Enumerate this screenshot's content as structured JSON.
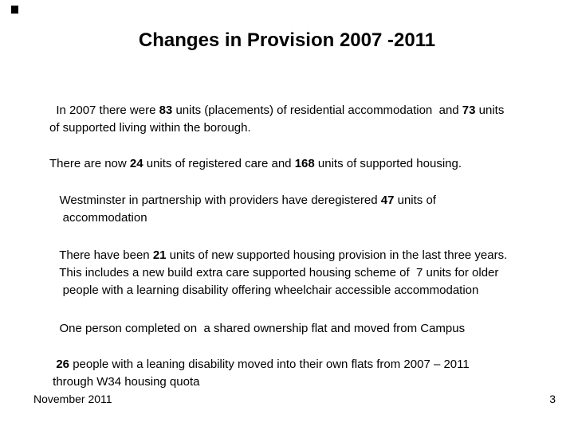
{
  "slide": {
    "title": "Changes in Provision 2007 -2011",
    "artifact_color": "#000000",
    "text_color": "#000000",
    "background_color": "#ffffff",
    "paragraphs": [
      {
        "lines": [
          [
            {
              "text": "  In 2007 there were ",
              "bold": false
            },
            {
              "text": "83",
              "bold": true
            },
            {
              "text": " units (placements) of residential accommodation  and ",
              "bold": false
            },
            {
              "text": "73",
              "bold": true
            },
            {
              "text": " units",
              "bold": false
            }
          ],
          [
            {
              "text": "of supported living within the borough.",
              "bold": false
            }
          ]
        ]
      },
      {
        "lines": [
          [
            {
              "text": "There are now ",
              "bold": false
            },
            {
              "text": "24",
              "bold": true
            },
            {
              "text": " units of registered care and ",
              "bold": false
            },
            {
              "text": "168",
              "bold": true
            },
            {
              "text": " units of supported housing.",
              "bold": false
            }
          ]
        ]
      },
      {
        "lines": [
          [
            {
              "text": "   Westminster in partnership with providers have deregistered ",
              "bold": false
            },
            {
              "text": "47",
              "bold": true
            },
            {
              "text": " units of",
              "bold": false
            }
          ],
          [
            {
              "text": "    accommodation",
              "bold": false
            }
          ]
        ]
      },
      {
        "lines": [
          [
            {
              "text": "   There have been ",
              "bold": false
            },
            {
              "text": "21",
              "bold": true
            },
            {
              "text": " units of new supported housing provision in the last three years.",
              "bold": false
            }
          ],
          [
            {
              "text": "   This includes a new build extra care supported housing scheme of  7 units for older",
              "bold": false
            }
          ],
          [
            {
              "text": "    people with a learning disability offering wheelchair accessible accommodation",
              "bold": false
            }
          ]
        ]
      },
      {
        "lines": [
          [
            {
              "text": "   One person completed on  a shared ownership flat and moved from Campus",
              "bold": false
            }
          ]
        ]
      },
      {
        "lines": [
          [
            {
              "text": "  ",
              "bold": false
            },
            {
              "text": "26",
              "bold": true
            },
            {
              "text": " people with a leaning disability moved into their own flats from 2007 – 2011",
              "bold": false
            }
          ],
          [
            {
              "text": " through W34 housing quota",
              "bold": false
            }
          ]
        ]
      }
    ],
    "footer": {
      "date": "November 2011",
      "page": "3"
    }
  }
}
